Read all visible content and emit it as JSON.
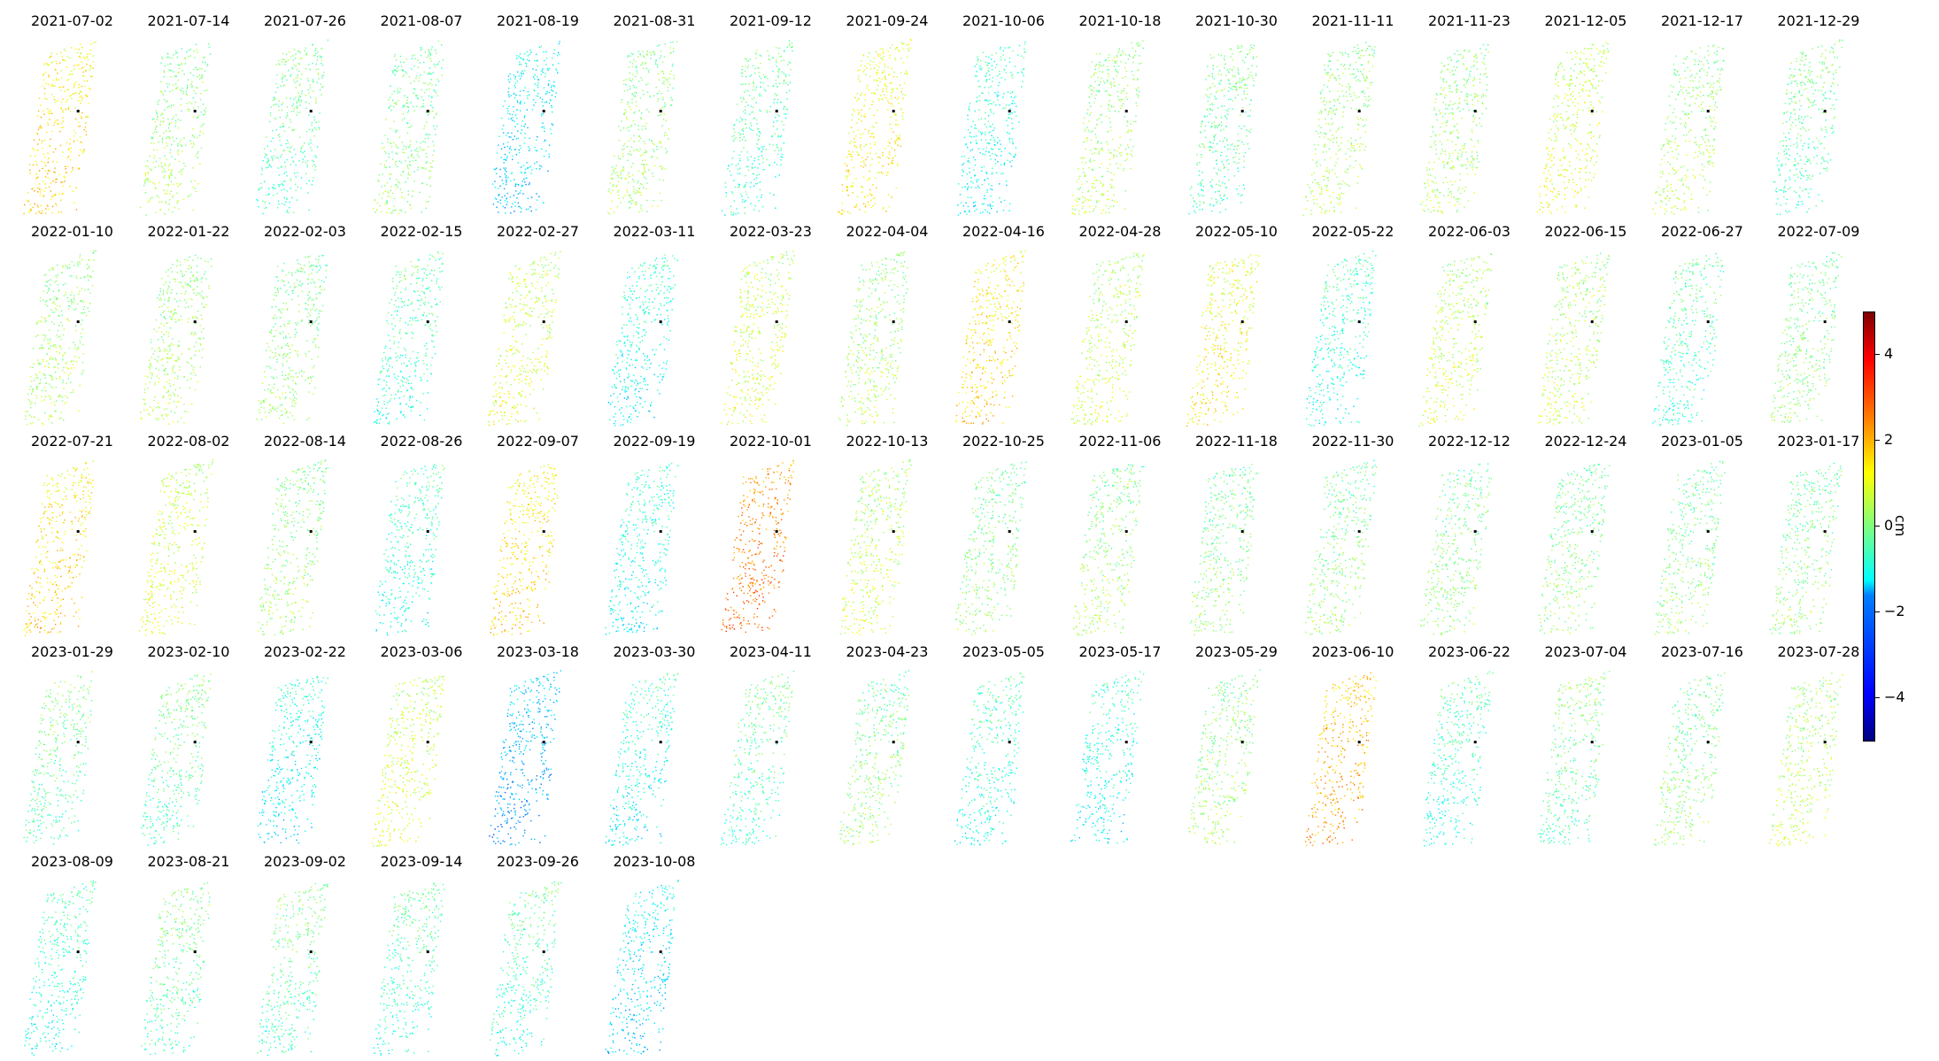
{
  "chart_data": {
    "type": "heatmap",
    "panel_titles": [
      "2021-07-02",
      "2021-07-14",
      "2021-07-26",
      "2021-08-07",
      "2021-08-19",
      "2021-08-31",
      "2021-09-12",
      "2021-09-24",
      "2021-10-06",
      "2021-10-18",
      "2021-10-30",
      "2021-11-11",
      "2021-11-23",
      "2021-12-05",
      "2021-12-17",
      "2021-12-29",
      "2022-01-10",
      "2022-01-22",
      "2022-02-03",
      "2022-02-15",
      "2022-02-27",
      "2022-03-11",
      "2022-03-23",
      "2022-04-04",
      "2022-04-16",
      "2022-04-28",
      "2022-05-10",
      "2022-05-22",
      "2022-06-03",
      "2022-06-15",
      "2022-06-27",
      "2022-07-09",
      "2022-07-21",
      "2022-08-02",
      "2022-08-14",
      "2022-08-26",
      "2022-09-07",
      "2022-09-19",
      "2022-10-01",
      "2022-10-13",
      "2022-10-25",
      "2022-11-06",
      "2022-11-18",
      "2022-11-30",
      "2022-12-12",
      "2022-12-24",
      "2023-01-05",
      "2023-01-17",
      "2023-01-29",
      "2023-02-10",
      "2023-02-22",
      "2023-03-06",
      "2023-03-18",
      "2023-03-30",
      "2023-04-11",
      "2023-04-23",
      "2023-05-05",
      "2023-05-17",
      "2023-05-29",
      "2023-06-10",
      "2023-06-22",
      "2023-07-04",
      "2023-07-16",
      "2023-07-28",
      "2023-08-09",
      "2023-08-21",
      "2023-09-02",
      "2023-09-14",
      "2023-09-26",
      "2023-10-08"
    ],
    "panel_mean_cm": [
      1.5,
      0.2,
      -0.3,
      0.0,
      -1.5,
      0.2,
      -0.5,
      1.2,
      -1.0,
      0.3,
      -0.3,
      0.3,
      0.3,
      0.8,
      0.3,
      -0.3,
      0.3,
      0.3,
      0.1,
      -0.6,
      0.8,
      -1.0,
      0.8,
      0.3,
      1.5,
      0.6,
      1.2,
      -0.8,
      0.6,
      0.5,
      -0.5,
      0.0,
      1.5,
      0.8,
      0.2,
      -0.8,
      1.5,
      -1.0,
      2.5,
      0.6,
      0.0,
      0.2,
      0.0,
      0.0,
      0.0,
      0.0,
      0.0,
      0.0,
      -0.2,
      -0.3,
      -1.2,
      0.8,
      -2.0,
      -1.0,
      -0.4,
      0.0,
      -0.8,
      -1.0,
      0.2,
      2.0,
      -0.7,
      -0.2,
      0.0,
      0.5,
      -0.8,
      -0.3,
      -0.3,
      -0.6,
      -0.6,
      -1.5
    ],
    "colorbar": {
      "label": "cm",
      "range": [
        -5,
        5
      ],
      "ticks": [
        -4,
        -2,
        0,
        2,
        4
      ],
      "tick_labels": [
        "−4",
        "−2",
        "0",
        "2",
        "4"
      ],
      "colormap": "jet",
      "colors": [
        "#00007f",
        "#0000ff",
        "#007fff",
        "#00ffff",
        "#7fff7f",
        "#ffff00",
        "#ff7f00",
        "#ff0000",
        "#7f0000"
      ]
    },
    "layout": {
      "rows": 5,
      "columns": 16
    }
  }
}
